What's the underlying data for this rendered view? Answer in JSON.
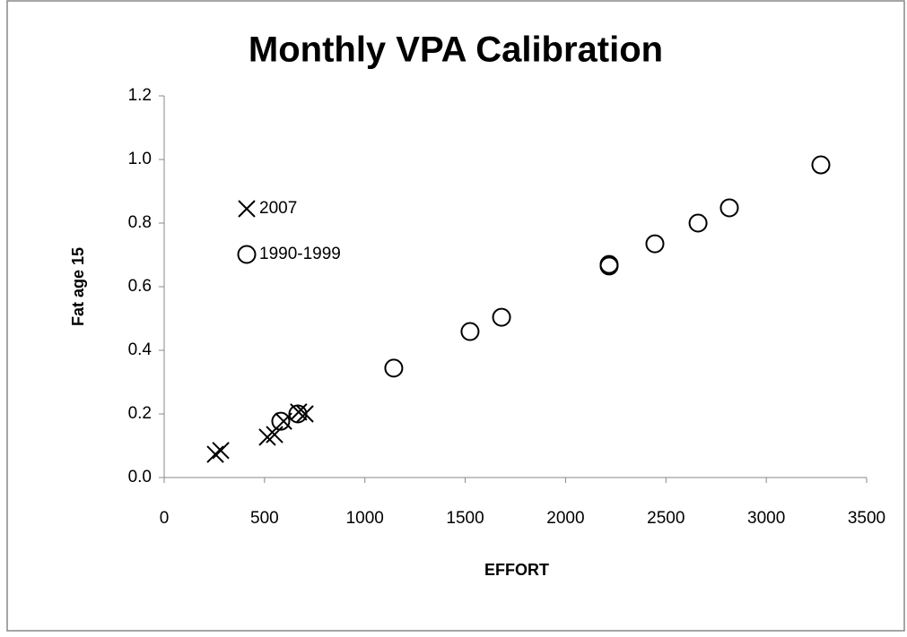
{
  "chart_data": {
    "type": "scatter",
    "title": "Monthly VPA Calibration",
    "xlabel": "EFFORT",
    "ylabel": "Fat age 15",
    "xlim": [
      0,
      3500
    ],
    "xticks": [
      0,
      500,
      1000,
      1500,
      2000,
      2500,
      3000,
      3500
    ],
    "ylim": [
      0,
      1.2
    ],
    "yticks": [
      {
        "value": 0,
        "label": "0.0"
      },
      0.2,
      0.4,
      0.6,
      0.8,
      {
        "value": 1,
        "label": "1.0"
      },
      1.2
    ],
    "legend": "upper left",
    "series": [
      {
        "name": "2007",
        "color": "#000000",
        "marker": "x",
        "x": [
          255,
          282,
          514,
          550,
          595,
          670,
          702
        ],
        "values": [
          0.073,
          0.085,
          0.127,
          0.135,
          0.177,
          0.206,
          0.2
        ]
      },
      {
        "name": "1990-1999",
        "color": "#000000",
        "marker": "o",
        "x": [
          581,
          666,
          1144,
          1524,
          1681,
          2217,
          2217,
          2445,
          2660,
          2816,
          3272
        ],
        "values": [
          0.177,
          0.2,
          0.344,
          0.459,
          0.504,
          0.665,
          0.67,
          0.735,
          0.8,
          0.848,
          0.983
        ]
      }
    ]
  }
}
